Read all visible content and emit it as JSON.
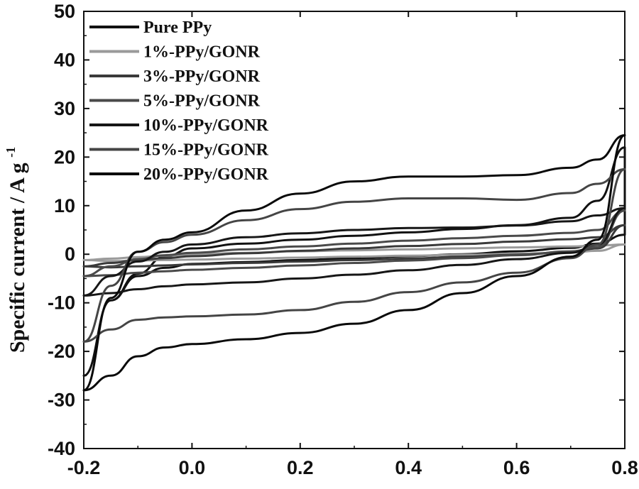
{
  "chart_data": {
    "type": "line",
    "title": "",
    "xlabel": "",
    "ylabel": "Specific current / A g",
    "ylabel_superscript": "-1",
    "xlim": [
      -0.2,
      0.8
    ],
    "ylim": [
      -40,
      50
    ],
    "x_ticks": [
      "-0.2",
      "0.0",
      "0.2",
      "0.4",
      "0.6",
      "0.8"
    ],
    "y_ticks": [
      "-40",
      "-30",
      "-20",
      "-10",
      "0",
      "10",
      "20",
      "30",
      "40",
      "50"
    ],
    "x_tick_values": [
      -0.2,
      0.0,
      0.2,
      0.4,
      0.6,
      0.8
    ],
    "y_tick_values": [
      -40,
      -30,
      -20,
      -10,
      0,
      10,
      20,
      30,
      40,
      50
    ],
    "grid": false,
    "legend_position": "top-left",
    "x": [
      -0.2,
      -0.15,
      -0.1,
      -0.05,
      0.0,
      0.1,
      0.2,
      0.3,
      0.4,
      0.5,
      0.6,
      0.7,
      0.75,
      0.8
    ],
    "series": [
      {
        "name": "Pure PPy",
        "color": "#111111",
        "anodic": [
          -25,
          -9.5,
          -4,
          -0.5,
          1.2,
          2.2,
          3.0,
          3.8,
          4.5,
          5.2,
          6.0,
          7.5,
          11,
          22
        ],
        "cathodic": [
          -25,
          -9.5,
          -4.5,
          -2.8,
          -2.0,
          -1.6,
          -1.2,
          -0.8,
          -0.4,
          0.0,
          0.6,
          1.3,
          2.2,
          4.0
        ]
      },
      {
        "name": "1%-PPy/GONR",
        "color": "#9a9a9a",
        "anodic": [
          -1.2,
          -0.9,
          -0.6,
          -0.3,
          0.0,
          0.3,
          0.6,
          0.8,
          1.0,
          1.2,
          1.4,
          1.6,
          1.8,
          2.0
        ],
        "cathodic": [
          -1.2,
          -1.4,
          -1.3,
          -1.2,
          -1.1,
          -0.9,
          -0.7,
          -0.5,
          -0.3,
          -0.1,
          0.1,
          0.4,
          0.7,
          2.0
        ]
      },
      {
        "name": "3%-PPy/GONR",
        "color": "#3a3a3a",
        "anodic": [
          -2.5,
          -1.8,
          -1.2,
          -0.8,
          -0.4,
          0.2,
          0.7,
          1.2,
          1.7,
          2.1,
          2.6,
          3.1,
          3.5,
          6.0
        ],
        "cathodic": [
          -2.5,
          -2.7,
          -2.5,
          -2.3,
          -2.1,
          -1.8,
          -1.5,
          -1.2,
          -0.9,
          -0.5,
          -0.1,
          0.5,
          1.2,
          6.0
        ]
      },
      {
        "name": "5%-PPy/GONR",
        "color": "#4a4a4a",
        "anodic": [
          -4.5,
          -2.5,
          -1.0,
          -0.2,
          0.3,
          1.0,
          1.6,
          2.2,
          2.8,
          3.3,
          3.8,
          4.4,
          5.0,
          9.0
        ],
        "cathodic": [
          -4.5,
          -4.3,
          -3.8,
          -3.5,
          -3.2,
          -2.8,
          -2.3,
          -1.8,
          -1.3,
          -0.8,
          -0.2,
          0.6,
          1.5,
          9.0
        ]
      },
      {
        "name": "10%-PPy/GONR",
        "color": "#161616",
        "anodic": [
          -8.5,
          -4.5,
          -1.5,
          0.5,
          2.0,
          3.5,
          4.3,
          5.0,
          5.4,
          5.5,
          5.9,
          6.8,
          8.0,
          9.5
        ],
        "cathodic": [
          -8.5,
          -8.0,
          -7.2,
          -6.6,
          -6.2,
          -5.8,
          -5.0,
          -4.2,
          -3.3,
          -2.2,
          -1.0,
          0.3,
          2.0,
          9.5
        ]
      },
      {
        "name": "15%-PPy/GONR",
        "color": "#454545",
        "anodic": [
          -18,
          -6.5,
          0.5,
          2.5,
          4.0,
          7.0,
          9.3,
          10.8,
          11.5,
          11.5,
          11.2,
          12.6,
          14.5,
          17.5
        ],
        "cathodic": [
          -18,
          -15.5,
          -13.5,
          -13,
          -12.8,
          -12.4,
          -11.5,
          -9.8,
          -7.8,
          -5.8,
          -3.8,
          -0.8,
          2.0,
          17.5
        ]
      },
      {
        "name": "20%-PPy/GONR",
        "color": "#0a0a0a",
        "anodic": [
          -28,
          -9,
          0.5,
          3.0,
          4.5,
          9.0,
          12.5,
          15.0,
          16.0,
          16.0,
          16.3,
          17.8,
          19.5,
          24.5
        ],
        "cathodic": [
          -28,
          -25,
          -21,
          -19.2,
          -18.5,
          -17.5,
          -16.2,
          -14.3,
          -11.5,
          -8.0,
          -4.5,
          -0.5,
          3.0,
          24.5
        ]
      }
    ]
  }
}
